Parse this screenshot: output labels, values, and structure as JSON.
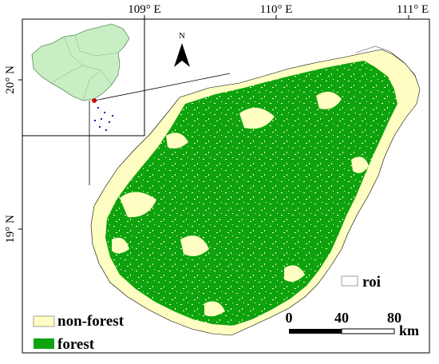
{
  "map": {
    "longitude_labels": [
      "109° E",
      "110° E",
      "111° E"
    ],
    "latitude_labels": [
      "20° N",
      "19° N"
    ],
    "north_arrow": {
      "label": "N",
      "icon": "north-arrow-icon"
    },
    "roi_legend": {
      "label": "roi",
      "swatch_color": "#ffffff"
    },
    "legend": [
      {
        "label": "non-forest",
        "color": "#fffec2"
      },
      {
        "label": "forest",
        "color": "#0ea30e"
      }
    ],
    "scale_bar": {
      "ticks": [
        "0",
        "40",
        "80"
      ],
      "unit": "km"
    },
    "colors": {
      "forest": "#0ea30e",
      "non_forest": "#fffec2",
      "inset_china": "#c9eec4",
      "inset_roi_marker": "#e01010",
      "inset_islands": "#1a1aa0"
    }
  }
}
